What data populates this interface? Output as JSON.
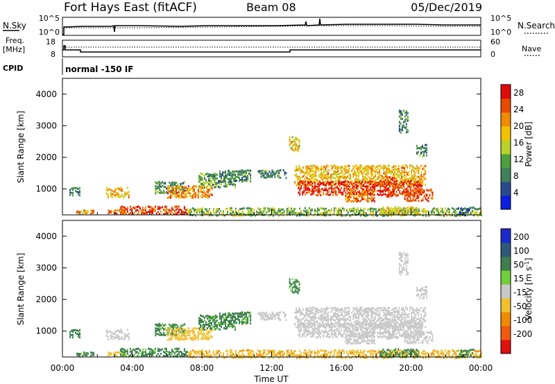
{
  "header": {
    "station": "Fort Hays East (fitACF)",
    "beam": "Beam 08",
    "date": "05/Dec/2019"
  },
  "summary": {
    "nsky_label": "N.Sky",
    "nsearch_label": "N.Search",
    "noise_ticks": [
      "10^5",
      "10^0"
    ],
    "freq_label_1": "Freq.",
    "freq_label_2": "[MHz]",
    "freq_ticks": [
      "18",
      "8"
    ],
    "nave_label": "Nave",
    "nave_ticks": [
      "60",
      "0"
    ],
    "cpid_label": "CPID",
    "cpid_value": "normal -150 IF"
  },
  "colors": {
    "power_scale": [
      "#0c1ee0",
      "#2a4a8e",
      "#3f7f5c",
      "#4f9e3e",
      "#b8d22a",
      "#f2c200",
      "#f08a00",
      "#e84a00",
      "#e00a0a"
    ],
    "velocity_scale": [
      "#1a2acc",
      "#2e5a78",
      "#3d7f4e",
      "#6fcf3a",
      "#c8c8c8",
      "#f0c030",
      "#f08a00",
      "#f05a10",
      "#e01010"
    ],
    "background": "#ffffff"
  },
  "chart_data": [
    {
      "type": "heatmap",
      "panel": "power",
      "ylabel": "Slant Range [km]",
      "xlabel": "",
      "ylim": [
        180,
        4500
      ],
      "yticks": [
        1000,
        2000,
        3000,
        4000
      ],
      "colorbar_label": "Power [dB]",
      "colorbar_ticks": [
        4,
        8,
        12,
        16,
        20,
        24,
        28
      ],
      "colorbar_range": [
        0,
        30
      ],
      "regions": [
        {
          "t0": 0.4,
          "t1": 1.0,
          "r0": 800,
          "r1": 1050,
          "value": 8
        },
        {
          "t0": 2.5,
          "t1": 3.8,
          "r0": 750,
          "r1": 1050,
          "value": 19
        },
        {
          "t0": 5.3,
          "t1": 7.0,
          "r0": 900,
          "r1": 1250,
          "value": 10
        },
        {
          "t0": 6.0,
          "t1": 8.6,
          "r0": 750,
          "r1": 1100,
          "value": 22
        },
        {
          "t0": 7.8,
          "t1": 9.9,
          "r0": 1050,
          "r1": 1500,
          "value": 11
        },
        {
          "t0": 9.0,
          "t1": 10.8,
          "r0": 1250,
          "r1": 1600,
          "value": 9
        },
        {
          "t0": 11.2,
          "t1": 12.8,
          "r0": 1350,
          "r1": 1600,
          "value": 9
        },
        {
          "t0": 13.0,
          "t1": 13.6,
          "r0": 2200,
          "r1": 2650,
          "value": 17
        },
        {
          "t0": 13.3,
          "t1": 20.8,
          "r0": 1100,
          "r1": 1750,
          "value": 19
        },
        {
          "t0": 13.5,
          "t1": 20.6,
          "r0": 850,
          "r1": 1250,
          "value": 27
        },
        {
          "t0": 16.2,
          "t1": 17.9,
          "r0": 600,
          "r1": 1050,
          "value": 23
        },
        {
          "t0": 18.5,
          "t1": 19.2,
          "r0": 800,
          "r1": 1400,
          "value": 26
        },
        {
          "t0": 19.6,
          "t1": 21.2,
          "r0": 650,
          "r1": 1000,
          "value": 25
        },
        {
          "t0": 20.3,
          "t1": 20.9,
          "r0": 2050,
          "r1": 2400,
          "value": 10
        },
        {
          "t0": 19.3,
          "t1": 19.8,
          "r0": 2800,
          "r1": 3500,
          "value": 9
        },
        {
          "t0": 0.8,
          "t1": 1.8,
          "r0": 200,
          "r1": 330,
          "value": 21
        },
        {
          "t0": 2.6,
          "t1": 3.6,
          "r0": 200,
          "r1": 330,
          "value": 24
        },
        {
          "t0": 3.3,
          "t1": 7.2,
          "r0": 200,
          "r1": 450,
          "value": 25
        },
        {
          "t0": 7.2,
          "t1": 24.0,
          "r0": 200,
          "r1": 400,
          "value": 13
        },
        {
          "t0": 18.2,
          "t1": 20.4,
          "r0": 200,
          "r1": 430,
          "value": 17
        },
        {
          "t0": 22.6,
          "t1": 23.6,
          "r0": 200,
          "r1": 420,
          "value": 6
        }
      ]
    },
    {
      "type": "heatmap",
      "panel": "velocity",
      "ylabel": "Slant Range [km]",
      "xlabel": "Time UT",
      "ylim": [
        180,
        4500
      ],
      "yticks": [
        1000,
        2000,
        3000,
        4000
      ],
      "xticks": [
        "00:00",
        "04:00",
        "08:00",
        "12:00",
        "16:00",
        "20:00",
        "00:00"
      ],
      "xlim": [
        0,
        24
      ],
      "colorbar_label": "Velocity [m s-1]",
      "colorbar_ticks": [
        200,
        100,
        50,
        15,
        -15,
        -50,
        -100,
        -200
      ],
      "regions": [
        {
          "t0": 0.4,
          "t1": 1.0,
          "r0": 800,
          "r1": 1050,
          "value": 60
        },
        {
          "t0": 2.5,
          "t1": 3.8,
          "r0": 750,
          "r1": 1050,
          "value": 0
        },
        {
          "t0": 5.3,
          "t1": 7.0,
          "r0": 900,
          "r1": 1250,
          "value": 60
        },
        {
          "t0": 6.0,
          "t1": 8.6,
          "r0": 750,
          "r1": 1100,
          "value": -30
        },
        {
          "t0": 7.8,
          "t1": 9.9,
          "r0": 1050,
          "r1": 1500,
          "value": 60
        },
        {
          "t0": 9.0,
          "t1": 10.8,
          "r0": 1250,
          "r1": 1600,
          "value": 60
        },
        {
          "t0": 11.2,
          "t1": 12.8,
          "r0": 1350,
          "r1": 1600,
          "value": 0
        },
        {
          "t0": 13.0,
          "t1": 13.6,
          "r0": 2200,
          "r1": 2650,
          "value": 60
        },
        {
          "t0": 13.3,
          "t1": 20.8,
          "r0": 1100,
          "r1": 1750,
          "value": 0
        },
        {
          "t0": 13.5,
          "t1": 20.6,
          "r0": 850,
          "r1": 1250,
          "value": 0
        },
        {
          "t0": 16.2,
          "t1": 17.9,
          "r0": 600,
          "r1": 1050,
          "value": 0
        },
        {
          "t0": 18.5,
          "t1": 19.2,
          "r0": 800,
          "r1": 1400,
          "value": 0
        },
        {
          "t0": 19.6,
          "t1": 21.2,
          "r0": 650,
          "r1": 1000,
          "value": 0
        },
        {
          "t0": 20.3,
          "t1": 20.9,
          "r0": 2050,
          "r1": 2400,
          "value": 0
        },
        {
          "t0": 19.3,
          "t1": 19.8,
          "r0": 2800,
          "r1": 3500,
          "value": 0
        },
        {
          "t0": 0.8,
          "t1": 1.8,
          "r0": 200,
          "r1": 330,
          "value": 60
        },
        {
          "t0": 2.6,
          "t1": 3.6,
          "r0": 200,
          "r1": 330,
          "value": -30
        },
        {
          "t0": 3.3,
          "t1": 7.2,
          "r0": 200,
          "r1": 450,
          "value": 60
        },
        {
          "t0": 7.2,
          "t1": 24.0,
          "r0": 200,
          "r1": 400,
          "value": -40
        },
        {
          "t0": 18.2,
          "t1": 20.4,
          "r0": 200,
          "r1": 430,
          "value": 60
        },
        {
          "t0": 22.6,
          "t1": 23.6,
          "r0": 200,
          "r1": 420,
          "value": 60
        }
      ]
    }
  ]
}
